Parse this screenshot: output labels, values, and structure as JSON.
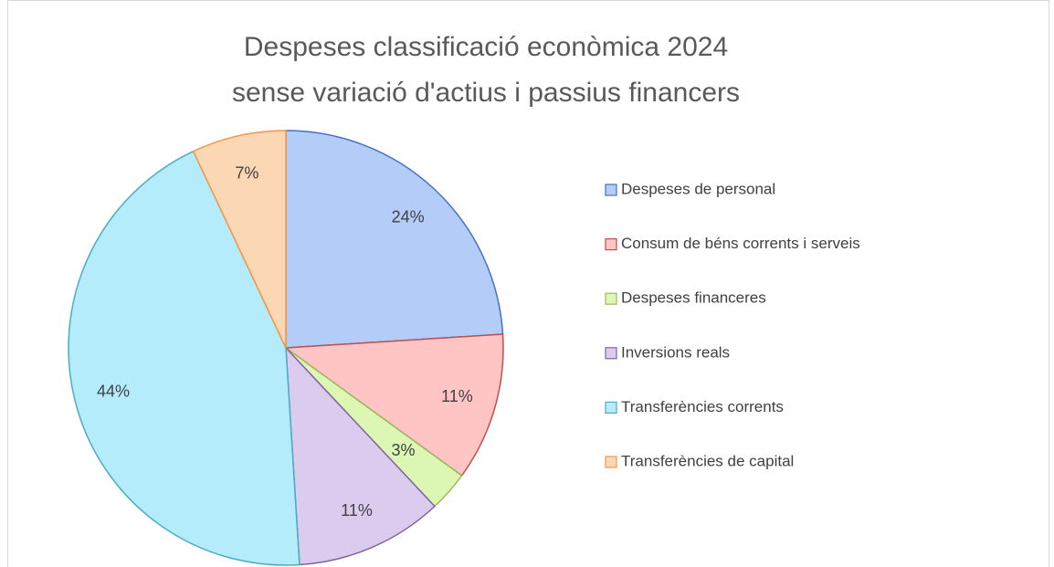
{
  "chart_data": {
    "type": "pie",
    "title": [
      "Despeses classificació econòmica 2024",
      "sense variació d'actius i passius financers"
    ],
    "categories": [
      "Despeses de personal",
      "Consum de béns corrents i serveis",
      "Despeses financeres",
      "Inversions reals",
      "Transferències corrents",
      "Transferències de capital"
    ],
    "values": [
      24,
      11,
      3,
      11,
      44,
      7
    ],
    "value_labels": [
      "24%",
      "11%",
      "3%",
      "11%",
      "44%",
      "7%"
    ],
    "colors": [
      "#b4cdf8",
      "#ffc4c4",
      "#dcf7b4",
      "#dacbef",
      "#b5ecfc",
      "#fcd7b4"
    ],
    "border_colors": [
      "#4472c4",
      "#c0504d",
      "#9bbb59",
      "#8064a2",
      "#4bacc6",
      "#f79646"
    ],
    "legend": "right"
  }
}
